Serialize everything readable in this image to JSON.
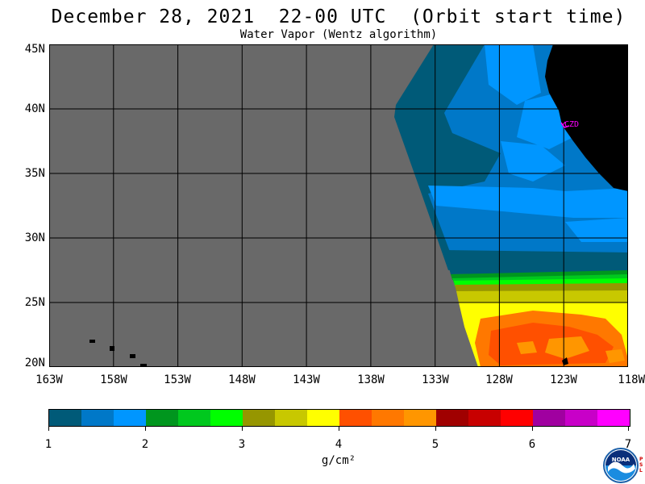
{
  "header": {
    "title": "December 28, 2021  22-00 UTC  (Orbit start time)",
    "subtitle": "Water Vapor (Wentz algorithm)"
  },
  "map": {
    "lat_labels": [
      "45N",
      "40N",
      "35N",
      "30N",
      "25N",
      "20N"
    ],
    "lon_labels": [
      "163W",
      "158W",
      "153W",
      "148W",
      "143W",
      "138W",
      "133W",
      "128W",
      "123W",
      "118W"
    ],
    "station_label": "CZD",
    "colors": {
      "no_data": "#696969",
      "land": "#000000",
      "station_marker": "#ff00ff"
    }
  },
  "colorbar": {
    "colors": [
      "#005a78",
      "#0078c8",
      "#0096ff",
      "#00961e",
      "#00c81e",
      "#00ff00",
      "#969600",
      "#c8c800",
      "#ffff00",
      "#ff5000",
      "#ff7800",
      "#ff9600",
      "#a00000",
      "#c80000",
      "#ff0000",
      "#a000a0",
      "#c800c8",
      "#ff00ff"
    ],
    "tick_labels": [
      "1",
      "2",
      "3",
      "4",
      "5",
      "6",
      "7"
    ],
    "units": "g/cm²"
  },
  "logo": {
    "name": "noaa-logo-icon",
    "text": "NOAA",
    "side_text": "PSL"
  }
}
